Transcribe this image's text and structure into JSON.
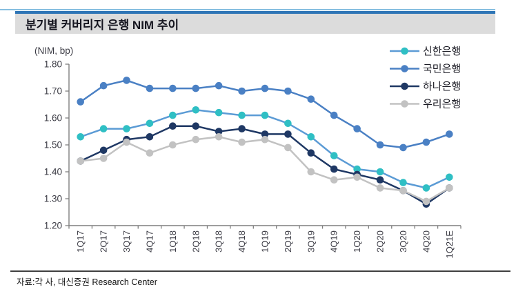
{
  "title_bar": {
    "title": "분기별 커버리지 은행 NIM 추이"
  },
  "footer": {
    "source": "자료:각 사, 대신증권 Research Center"
  },
  "colors": {
    "title_band_bg": "#DCDCDC",
    "title_band_border": "#2E75B6",
    "top_rule": "#86BEE0",
    "axis": "#7F7F7F",
    "tick_label": "#3B3B44",
    "legend_text": "#1B1B24"
  },
  "chart_data": {
    "type": "line",
    "title": "분기별 커버리지 은행 NIM 추이",
    "unit_label": "(NIM, bp)",
    "xlabel": "",
    "ylabel": "NIM (bp)",
    "ylim": [
      1.2,
      1.8
    ],
    "ytick_step": 0.1,
    "grid": false,
    "legend_position": "top-right",
    "categories": [
      "1Q17",
      "2Q17",
      "3Q17",
      "4Q17",
      "1Q18",
      "2Q18",
      "3Q18",
      "4Q18",
      "1Q19",
      "2Q19",
      "3Q19",
      "4Q19",
      "1Q20",
      "2Q20",
      "3Q20",
      "4Q20",
      "1Q21E"
    ],
    "series": [
      {
        "name": "신한은행",
        "line_color": "#5B9BD5",
        "marker_color": "#2FBFC4",
        "values": [
          1.53,
          1.56,
          1.56,
          1.58,
          1.61,
          1.63,
          1.62,
          1.61,
          1.61,
          1.58,
          1.53,
          1.46,
          1.41,
          1.4,
          1.36,
          1.34,
          1.38
        ]
      },
      {
        "name": "국민은행",
        "line_color": "#4A80C4",
        "marker_color": "#4A80C4",
        "values": [
          1.66,
          1.72,
          1.74,
          1.71,
          1.71,
          1.71,
          1.72,
          1.7,
          1.71,
          1.7,
          1.67,
          1.61,
          1.56,
          1.5,
          1.49,
          1.51,
          1.54
        ]
      },
      {
        "name": "하나은행",
        "line_color": "#1F3864",
        "marker_color": "#1F3864",
        "values": [
          1.44,
          1.48,
          1.52,
          1.53,
          1.57,
          1.57,
          1.55,
          1.56,
          1.54,
          1.54,
          1.47,
          1.41,
          1.39,
          1.37,
          1.33,
          1.28,
          1.34
        ]
      },
      {
        "name": "우리은행",
        "line_color": "#C2C2C2",
        "marker_color": "#C2C2C2",
        "values": [
          1.44,
          1.45,
          1.51,
          1.47,
          1.5,
          1.52,
          1.53,
          1.51,
          1.52,
          1.49,
          1.4,
          1.37,
          1.38,
          1.34,
          1.33,
          1.29,
          1.34
        ]
      }
    ]
  }
}
